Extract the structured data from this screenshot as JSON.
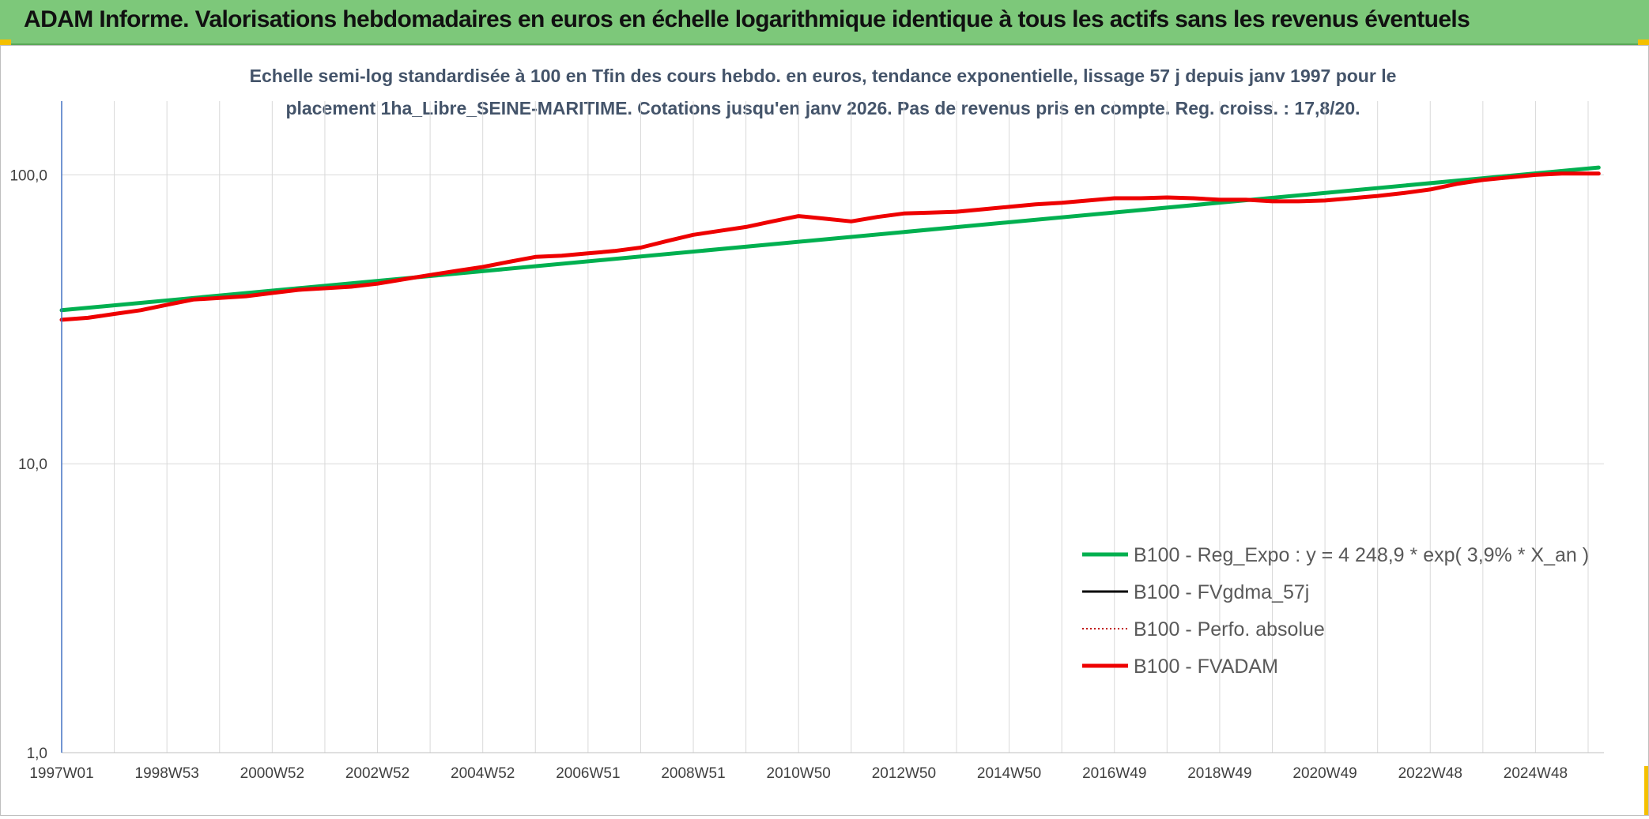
{
  "banner": {
    "title": "ADAM Informe. Valorisations hebdomadaires en euros en échelle logarithmique identique à tous les actifs sans les revenus éventuels"
  },
  "colors": {
    "banner_bg": "#7dc87a",
    "corner_accent": "#f4c000",
    "reg_expo": "#00b050",
    "fvgdma": "#000000",
    "perfo": "#c00000",
    "fvadam": "#ee0000",
    "grid": "#d9d9d9",
    "axis": "#4472c4"
  },
  "chart_data": {
    "type": "line",
    "scale": "log",
    "title_lines": [
      "Echelle semi-log standardisée à 100 en Tfin des cours hebdo. en euros, tendance exponentielle, lissage 57 j depuis janv 1997 pour le",
      "placement 1ha_Libre_SEINE-MARITIME. Cotations jusqu'en janv 2026. Pas de revenus pris en compte. Reg. croiss. : 17,8/20."
    ],
    "x_range": [
      1997.0,
      2026.3
    ],
    "ylim": [
      1,
      180
    ],
    "y_ticks": [
      {
        "value": 1,
        "label": "1,0"
      },
      {
        "value": 10,
        "label": "10,0"
      },
      {
        "value": 100,
        "label": "100,0"
      }
    ],
    "x_ticks": [
      {
        "value": 1997.0,
        "label": "1997W01"
      },
      {
        "value": 1999.0,
        "label": "1998W53"
      },
      {
        "value": 2001.0,
        "label": "2000W52"
      },
      {
        "value": 2003.0,
        "label": "2002W52"
      },
      {
        "value": 2005.0,
        "label": "2004W52"
      },
      {
        "value": 2007.0,
        "label": "2006W51"
      },
      {
        "value": 2009.0,
        "label": "2008W51"
      },
      {
        "value": 2011.0,
        "label": "2010W50"
      },
      {
        "value": 2013.0,
        "label": "2012W50"
      },
      {
        "value": 2015.0,
        "label": "2014W50"
      },
      {
        "value": 2017.0,
        "label": "2016W49"
      },
      {
        "value": 2019.0,
        "label": "2018W49"
      },
      {
        "value": 2021.0,
        "label": "2020W49"
      },
      {
        "value": 2023.0,
        "label": "2022W48"
      },
      {
        "value": 2025.0,
        "label": "2024W48"
      }
    ],
    "legend_position": "bottom-right",
    "series": [
      {
        "key": "reg_expo",
        "name": "B100 - Reg_Expo : y = 4 248,9 * exp( 3,9% *  X_an )",
        "color": "#00b050",
        "style": "solid",
        "width": 5,
        "x": [
          1997.0,
          2026.2
        ],
        "y": [
          34.0,
          106.0
        ]
      },
      {
        "key": "fvgdma",
        "name": "B100 - FVgdma_57j",
        "color": "#000000",
        "style": "solid",
        "width": 3,
        "hidden": true,
        "x": [],
        "y": []
      },
      {
        "key": "perfo",
        "name": "B100 - Perfo. absolue",
        "color": "#c00000",
        "style": "dotted",
        "width": 2,
        "hidden": true,
        "x": [],
        "y": []
      },
      {
        "key": "fvadam",
        "name": "B100 - FVADAM",
        "color": "#ee0000",
        "style": "solid",
        "width": 5,
        "x": [
          1997.0,
          1997.5,
          1998.0,
          1998.5,
          1999.0,
          1999.5,
          2000.0,
          2000.5,
          2001.0,
          2001.5,
          2002.0,
          2002.5,
          2003.0,
          2003.5,
          2004.0,
          2004.5,
          2005.0,
          2005.5,
          2006.0,
          2006.5,
          2007.0,
          2007.5,
          2008.0,
          2008.5,
          2009.0,
          2009.5,
          2010.0,
          2010.5,
          2011.0,
          2011.5,
          2012.0,
          2012.5,
          2013.0,
          2013.5,
          2014.0,
          2014.5,
          2015.0,
          2015.5,
          2016.0,
          2016.5,
          2017.0,
          2017.5,
          2018.0,
          2018.5,
          2019.0,
          2019.5,
          2020.0,
          2020.5,
          2021.0,
          2021.5,
          2022.0,
          2022.5,
          2023.0,
          2023.5,
          2024.0,
          2024.5,
          2025.0,
          2025.5,
          2026.2
        ],
        "y": [
          31.5,
          32.0,
          33.0,
          34.0,
          35.5,
          37.0,
          37.5,
          38.0,
          39.0,
          40.0,
          40.5,
          41.0,
          42.0,
          43.5,
          45.0,
          46.5,
          48.0,
          50.0,
          52.0,
          52.5,
          53.5,
          54.5,
          56.0,
          59.0,
          62.0,
          64.0,
          66.0,
          69.0,
          72.0,
          70.5,
          69.0,
          71.5,
          73.5,
          74.0,
          74.5,
          76.0,
          77.5,
          79.0,
          80.0,
          81.5,
          83.0,
          83.0,
          83.5,
          83.0,
          82.0,
          82.0,
          81.0,
          81.0,
          81.5,
          83.0,
          84.5,
          86.5,
          89.0,
          93.0,
          96.0,
          98.0,
          100.0,
          101.0,
          101.0
        ]
      }
    ]
  }
}
